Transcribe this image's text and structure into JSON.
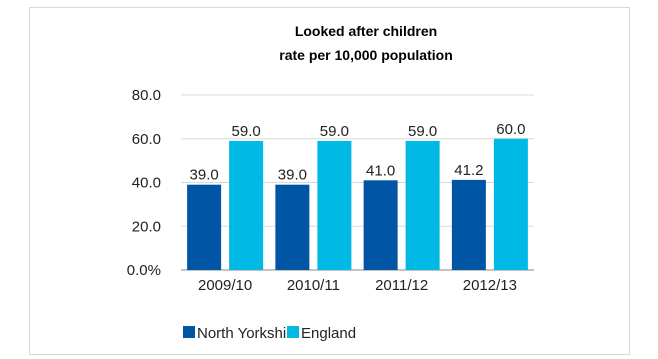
{
  "chart_data": {
    "type": "bar",
    "title_lines": [
      "Looked after children",
      "rate per 10,000 population"
    ],
    "categories": [
      "2009/10",
      "2010/11",
      "2011/12",
      "2012/13"
    ],
    "series": [
      {
        "name": "North Yorkshire",
        "color": "#0055a5",
        "values": [
          39.0,
          39.0,
          41.0,
          41.2
        ],
        "labels": [
          "39.0",
          "39.0",
          "41.0",
          "41.2"
        ]
      },
      {
        "name": "England",
        "color": "#00b9e4",
        "values": [
          59.0,
          59.0,
          59.0,
          60.0
        ],
        "labels": [
          "59.0",
          "59.0",
          "59.0",
          "60.0"
        ]
      }
    ],
    "ylim": [
      0,
      80
    ],
    "y_ticks": [
      {
        "value": 0,
        "label": "0.0%"
      },
      {
        "value": 20,
        "label": "20.0"
      },
      {
        "value": 40,
        "label": "40.0"
      },
      {
        "value": 60,
        "label": "60.0"
      },
      {
        "value": 80,
        "label": "80.0"
      }
    ],
    "grid": true,
    "legend_position": "bottom-left"
  }
}
